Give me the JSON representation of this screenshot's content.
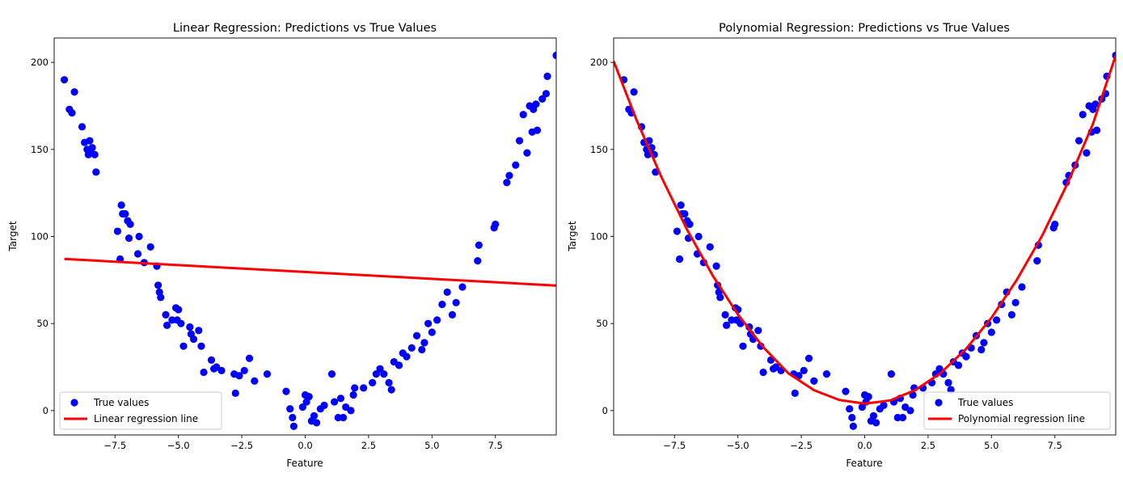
{
  "colors": {
    "points": "#0000ff",
    "line": "#ff0000",
    "axes": "#000000",
    "legend_border": "#cccccc"
  },
  "chart_data": [
    {
      "type": "scatter",
      "title": "Linear Regression: Predictions vs True Values",
      "xlabel": "Feature",
      "ylabel": "Target",
      "xlim": [
        -9.9,
        9.9
      ],
      "ylim": [
        -14,
        214
      ],
      "xticks": [
        -7.5,
        -5.0,
        -2.5,
        0.0,
        2.5,
        5.0,
        7.5
      ],
      "xtick_labels": [
        "−7.5",
        "−5.0",
        "−2.5",
        "0.0",
        "2.5",
        "5.0",
        "7.5"
      ],
      "yticks": [
        0,
        50,
        100,
        150,
        200
      ],
      "ytick_labels": [
        "0",
        "50",
        "100",
        "150",
        "200"
      ],
      "grid": false,
      "legend": {
        "position": "bottom-left",
        "entries": [
          "True values",
          "Linear regression line"
        ]
      },
      "scatter_series": {
        "name": "True values",
        "color": "#0000ff",
        "x": [
          -9.5,
          -9.3,
          -9.2,
          -9.1,
          -8.8,
          -8.7,
          -8.6,
          -8.55,
          -8.5,
          -8.45,
          -8.4,
          -8.3,
          -8.25,
          -7.4,
          -7.3,
          -7.25,
          -7.2,
          -7.1,
          -7.0,
          -6.95,
          -6.9,
          -6.6,
          -6.55,
          -6.35,
          -6.1,
          -5.85,
          -5.8,
          -5.75,
          -5.7,
          -5.5,
          -5.45,
          -5.25,
          -5.1,
          -5.05,
          -5.0,
          -4.9,
          -4.8,
          -4.55,
          -4.5,
          -4.4,
          -4.2,
          -4.1,
          -4.0,
          -3.7,
          -3.6,
          -3.5,
          -3.3,
          -2.8,
          -2.75,
          -2.6,
          -2.4,
          -2.2,
          -2.0,
          -1.5,
          -0.75,
          -0.6,
          -0.5,
          -0.45,
          -0.1,
          0.0,
          0.05,
          0.15,
          0.25,
          0.35,
          0.45,
          0.6,
          0.75,
          1.05,
          1.15,
          1.3,
          1.4,
          1.5,
          1.6,
          1.8,
          1.9,
          1.95,
          2.3,
          2.65,
          2.8,
          2.95,
          3.1,
          3.3,
          3.4,
          3.5,
          3.7,
          3.85,
          4.0,
          4.2,
          4.4,
          4.6,
          4.7,
          4.85,
          5.0,
          5.2,
          5.4,
          5.6,
          5.8,
          5.95,
          6.2,
          6.8,
          6.85,
          7.45,
          7.5,
          7.95,
          8.05,
          8.3,
          8.45,
          8.6,
          8.75,
          8.85,
          8.95,
          9.0,
          9.1,
          9.15,
          9.35,
          9.5,
          9.55,
          9.9
        ],
        "y": [
          190,
          173,
          171,
          183,
          163,
          154,
          150,
          147,
          155,
          148,
          151,
          147,
          137,
          103,
          87,
          118,
          113,
          113,
          109,
          99,
          107,
          90,
          100,
          85,
          94,
          83,
          72,
          68,
          65,
          55,
          49,
          52,
          59,
          52,
          58,
          50,
          37,
          48,
          44,
          41,
          46,
          37,
          22,
          29,
          24,
          25,
          23,
          21,
          10,
          20,
          23,
          30,
          17,
          21,
          11,
          1,
          -4,
          -9,
          2,
          9,
          5,
          8,
          -6,
          -3,
          -7,
          1,
          3,
          21,
          5,
          -4,
          7,
          -4,
          2,
          0,
          9,
          13,
          13,
          16,
          21,
          24,
          21,
          16,
          12,
          28,
          26,
          33,
          31,
          36,
          43,
          35,
          39,
          50,
          45,
          52,
          61,
          68,
          55,
          62,
          71,
          86,
          95,
          105,
          107,
          131,
          135,
          141,
          155,
          170,
          148,
          175,
          160,
          173,
          176,
          161,
          179,
          182,
          192,
          204
        ]
      },
      "line_series": {
        "name": "Linear regression line",
        "color": "#ff0000",
        "x": [
          -9.5,
          9.9
        ],
        "y": [
          87.1,
          71.8
        ]
      }
    },
    {
      "type": "scatter",
      "title": "Polynomial Regression: Predictions vs True Values",
      "xlabel": "Feature",
      "ylabel": "Target",
      "xlim": [
        -9.9,
        9.9
      ],
      "ylim": [
        -14,
        214
      ],
      "xticks": [
        -7.5,
        -5.0,
        -2.5,
        0.0,
        2.5,
        5.0,
        7.5
      ],
      "xtick_labels": [
        "−7.5",
        "−5.0",
        "−2.5",
        "0.0",
        "2.5",
        "5.0",
        "7.5"
      ],
      "yticks": [
        0,
        50,
        100,
        150,
        200
      ],
      "ytick_labels": [
        "0",
        "50",
        "100",
        "150",
        "200"
      ],
      "grid": false,
      "legend": {
        "position": "bottom-right",
        "entries": [
          "True values",
          "Polynomial regression line"
        ]
      },
      "scatter_series": {
        "name": "True values",
        "color": "#0000ff",
        "x": [
          -9.5,
          -9.3,
          -9.2,
          -9.1,
          -8.8,
          -8.7,
          -8.6,
          -8.55,
          -8.5,
          -8.45,
          -8.4,
          -8.3,
          -8.25,
          -7.4,
          -7.3,
          -7.25,
          -7.2,
          -7.1,
          -7.0,
          -6.95,
          -6.9,
          -6.6,
          -6.55,
          -6.35,
          -6.1,
          -5.85,
          -5.8,
          -5.75,
          -5.7,
          -5.5,
          -5.45,
          -5.25,
          -5.1,
          -5.05,
          -5.0,
          -4.9,
          -4.8,
          -4.55,
          -4.5,
          -4.4,
          -4.2,
          -4.1,
          -4.0,
          -3.7,
          -3.6,
          -3.5,
          -3.3,
          -2.8,
          -2.75,
          -2.6,
          -2.4,
          -2.2,
          -2.0,
          -1.5,
          -0.75,
          -0.6,
          -0.5,
          -0.45,
          -0.1,
          0.0,
          0.05,
          0.15,
          0.25,
          0.35,
          0.45,
          0.6,
          0.75,
          1.05,
          1.15,
          1.3,
          1.4,
          1.5,
          1.6,
          1.8,
          1.9,
          1.95,
          2.3,
          2.65,
          2.8,
          2.95,
          3.1,
          3.3,
          3.4,
          3.5,
          3.7,
          3.85,
          4.0,
          4.2,
          4.4,
          4.6,
          4.7,
          4.85,
          5.0,
          5.2,
          5.4,
          5.6,
          5.8,
          5.95,
          6.2,
          6.8,
          6.85,
          7.45,
          7.5,
          7.95,
          8.05,
          8.3,
          8.45,
          8.6,
          8.75,
          8.85,
          8.95,
          9.0,
          9.1,
          9.15,
          9.35,
          9.5,
          9.55,
          9.9
        ],
        "y": [
          190,
          173,
          171,
          183,
          163,
          154,
          150,
          147,
          155,
          148,
          151,
          147,
          137,
          103,
          87,
          118,
          113,
          113,
          109,
          99,
          107,
          90,
          100,
          85,
          94,
          83,
          72,
          68,
          65,
          55,
          49,
          52,
          59,
          52,
          58,
          50,
          37,
          48,
          44,
          41,
          46,
          37,
          22,
          29,
          24,
          25,
          23,
          21,
          10,
          20,
          23,
          30,
          17,
          21,
          11,
          1,
          -4,
          -9,
          2,
          9,
          5,
          8,
          -6,
          -3,
          -7,
          1,
          3,
          21,
          5,
          -4,
          7,
          -4,
          2,
          0,
          9,
          13,
          13,
          16,
          21,
          24,
          21,
          16,
          12,
          28,
          26,
          33,
          31,
          36,
          43,
          35,
          39,
          50,
          45,
          52,
          61,
          68,
          55,
          62,
          71,
          86,
          95,
          105,
          107,
          131,
          135,
          141,
          155,
          170,
          148,
          175,
          160,
          173,
          176,
          161,
          179,
          182,
          192,
          204
        ]
      },
      "line_series": {
        "name": "Polynomial regression line",
        "color": "#ff0000",
        "x": [
          -9.9,
          -9.0,
          -8.0,
          -7.0,
          -6.0,
          -5.0,
          -4.0,
          -3.0,
          -2.0,
          -1.0,
          0.0,
          1.0,
          2.0,
          3.0,
          4.0,
          5.0,
          6.0,
          7.0,
          8.0,
          9.0,
          9.9
        ],
        "y": [
          200.7,
          167.0,
          133.6,
          103.8,
          77.7,
          55.2,
          36.4,
          21.3,
          11.7,
          6.1,
          4.0,
          5.8,
          11.8,
          21.6,
          35.5,
          53.3,
          75.1,
          100.5,
          130.5,
          164.6,
          204.0
        ]
      }
    }
  ]
}
